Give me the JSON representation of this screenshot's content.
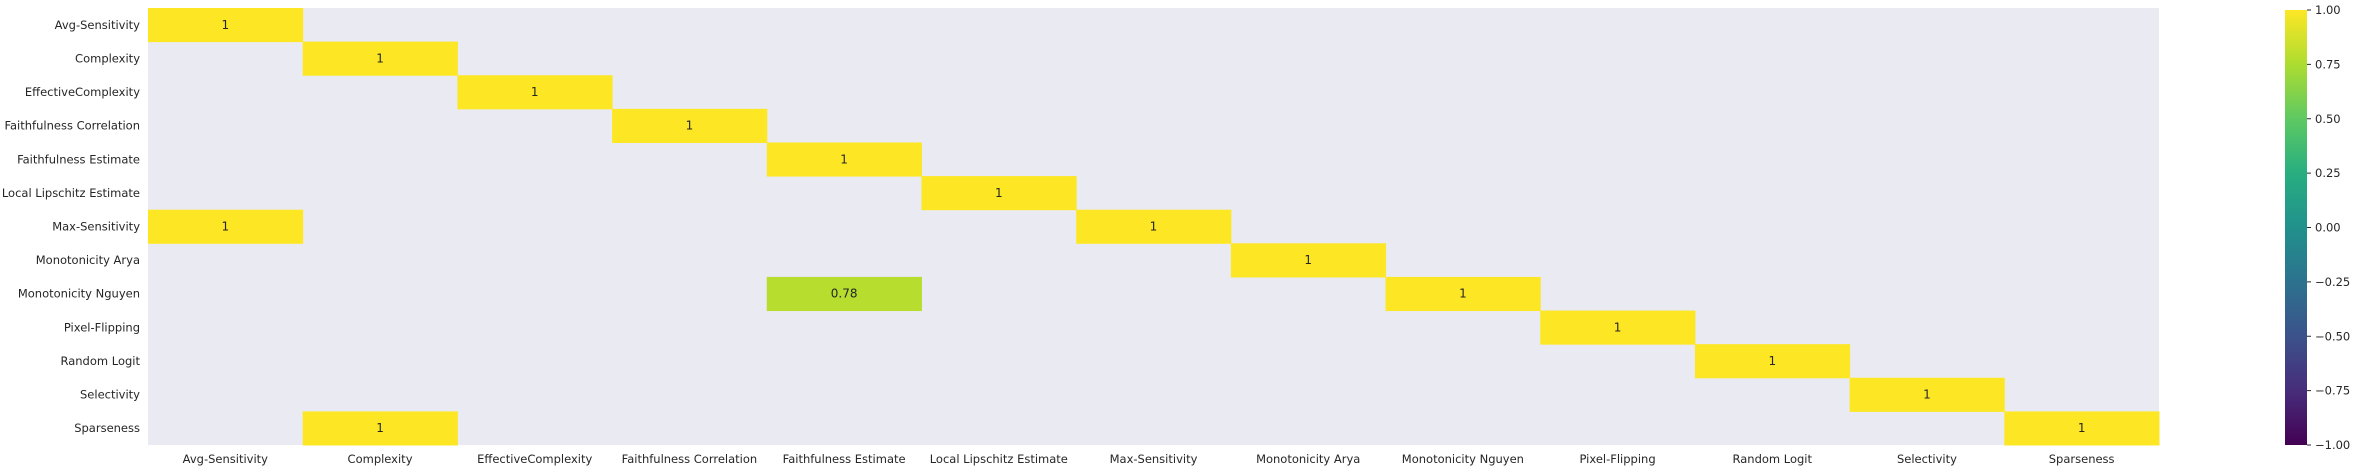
{
  "chart_data": {
    "type": "heatmap",
    "title": "",
    "xlabel": "",
    "ylabel": "",
    "rows": [
      "Avg-Sensitivity",
      "Complexity",
      "EffectiveComplexity",
      "Faithfulness Correlation",
      "Faithfulness Estimate",
      "Local Lipschitz Estimate",
      "Max-Sensitivity",
      "Monotonicity Arya",
      "Monotonicity Nguyen",
      "Pixel-Flipping",
      "Random Logit",
      "Selectivity",
      "Sparseness"
    ],
    "columns": [
      "Avg-Sensitivity",
      "Complexity",
      "EffectiveComplexity",
      "Faithfulness Correlation",
      "Faithfulness Estimate",
      "Local Lipschitz Estimate",
      "Max-Sensitivity",
      "Monotonicity Arya",
      "Monotonicity Nguyen",
      "Pixel-Flipping",
      "Random Logit",
      "Selectivity",
      "Sparseness"
    ],
    "cells": [
      {
        "row": 0,
        "col": 0,
        "value": 1,
        "label": "1"
      },
      {
        "row": 1,
        "col": 1,
        "value": 1,
        "label": "1"
      },
      {
        "row": 2,
        "col": 2,
        "value": 1,
        "label": "1"
      },
      {
        "row": 3,
        "col": 3,
        "value": 1,
        "label": "1"
      },
      {
        "row": 4,
        "col": 4,
        "value": 1,
        "label": "1"
      },
      {
        "row": 5,
        "col": 5,
        "value": 1,
        "label": "1"
      },
      {
        "row": 6,
        "col": 0,
        "value": 1,
        "label": "1"
      },
      {
        "row": 6,
        "col": 6,
        "value": 1,
        "label": "1"
      },
      {
        "row": 7,
        "col": 7,
        "value": 1,
        "label": "1"
      },
      {
        "row": 8,
        "col": 4,
        "value": 0.78,
        "label": "0.78"
      },
      {
        "row": 8,
        "col": 8,
        "value": 1,
        "label": "1"
      },
      {
        "row": 9,
        "col": 9,
        "value": 1,
        "label": "1"
      },
      {
        "row": 10,
        "col": 10,
        "value": 1,
        "label": "1"
      },
      {
        "row": 11,
        "col": 11,
        "value": 1,
        "label": "1"
      },
      {
        "row": 12,
        "col": 1,
        "value": 1,
        "label": "1"
      },
      {
        "row": 12,
        "col": 12,
        "value": 1,
        "label": "1"
      }
    ],
    "masked_cell_color": "#eaeaf2",
    "colormap": "viridis",
    "vmin": -1,
    "vmax": 1,
    "colorbar": {
      "ticks": [
        1.0,
        0.75,
        0.5,
        0.25,
        0.0,
        -0.25,
        -0.5,
        -0.75,
        -1.0
      ],
      "tick_labels": [
        "1.00",
        "0.75",
        "0.50",
        "0.25",
        "0.00",
        "−0.25",
        "−0.50",
        "−0.75",
        "−1.00"
      ]
    }
  }
}
